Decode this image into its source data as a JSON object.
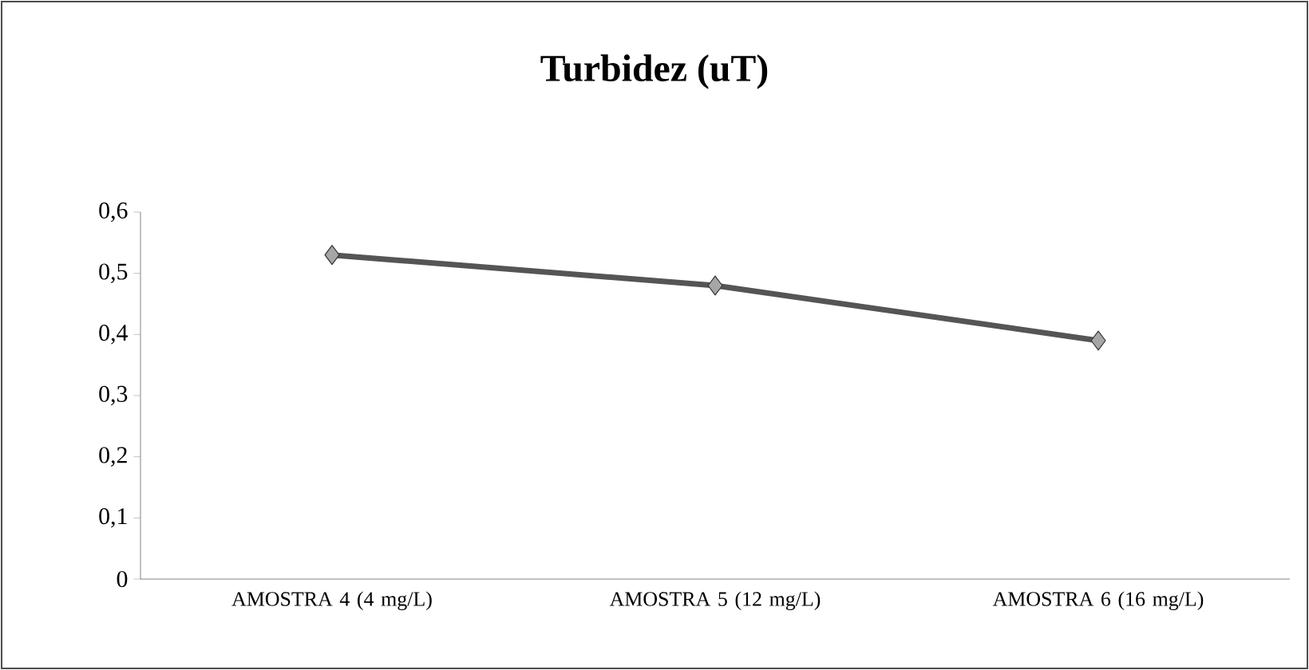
{
  "chart_data": {
    "type": "line",
    "title": "Turbidez (uT)",
    "categories": [
      "AMOSTRA 4 (4 mg/L)",
      "AMOSTRA 5 (12 mg/L)",
      "AMOSTRA 6 (16 mg/L)"
    ],
    "series": [
      {
        "color": "#555555",
        "values": [
          0.53,
          0.48,
          0.39
        ]
      }
    ],
    "ylim": [
      0,
      0.6
    ],
    "yticks": [
      {
        "value": 0,
        "label": "0"
      },
      {
        "value": 0.1,
        "label": "0,1"
      },
      {
        "value": 0.2,
        "label": "0,2"
      },
      {
        "value": 0.3,
        "label": "0,3"
      },
      {
        "value": 0.4,
        "label": "0,4"
      },
      {
        "value": 0.5,
        "label": "0,5"
      },
      {
        "value": 0.6,
        "label": "0,6"
      }
    ],
    "marker": "diamond",
    "line_style": "solid",
    "grid": false
  }
}
